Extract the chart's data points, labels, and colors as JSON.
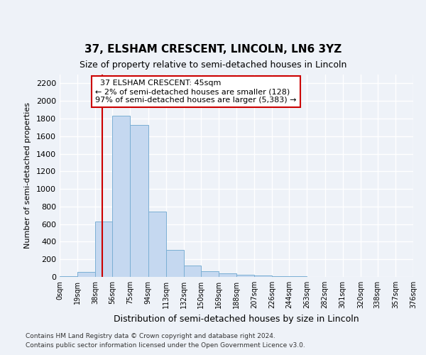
{
  "title1": "37, ELSHAM CRESCENT, LINCOLN, LN6 3YZ",
  "title2": "Size of property relative to semi-detached houses in Lincoln",
  "xlabel": "Distribution of semi-detached houses by size in Lincoln",
  "ylabel": "Number of semi-detached properties",
  "footer1": "Contains HM Land Registry data © Crown copyright and database right 2024.",
  "footer2": "Contains public sector information licensed under the Open Government Licence v3.0.",
  "annotation_title": "37 ELSHAM CRESCENT: 45sqm",
  "annotation_line1": "← 2% of semi-detached houses are smaller (128)",
  "annotation_line2": "97% of semi-detached houses are larger (5,383) →",
  "bar_color": "#c5d8f0",
  "bar_edge_color": "#7bafd4",
  "red_line_color": "#cc0000",
  "tick_labels": [
    "0sqm",
    "19sqm",
    "38sqm",
    "56sqm",
    "75sqm",
    "94sqm",
    "113sqm",
    "132sqm",
    "150sqm",
    "169sqm",
    "188sqm",
    "207sqm",
    "226sqm",
    "244sqm",
    "263sqm",
    "282sqm",
    "301sqm",
    "320sqm",
    "338sqm",
    "357sqm",
    "376sqm"
  ],
  "bin_edges": [
    0,
    19,
    38,
    56,
    75,
    94,
    113,
    132,
    150,
    169,
    188,
    207,
    226,
    244,
    263,
    282,
    301,
    320,
    338,
    357,
    376
  ],
  "counts": [
    10,
    55,
    630,
    1830,
    1725,
    740,
    305,
    130,
    65,
    42,
    25,
    15,
    10,
    5,
    3,
    2,
    1,
    1,
    0,
    0
  ],
  "property_size": 45,
  "ylim": [
    0,
    2300
  ],
  "yticks": [
    0,
    200,
    400,
    600,
    800,
    1000,
    1200,
    1400,
    1600,
    1800,
    2000,
    2200
  ],
  "background_color": "#eef2f8",
  "grid_color": "#ffffff"
}
